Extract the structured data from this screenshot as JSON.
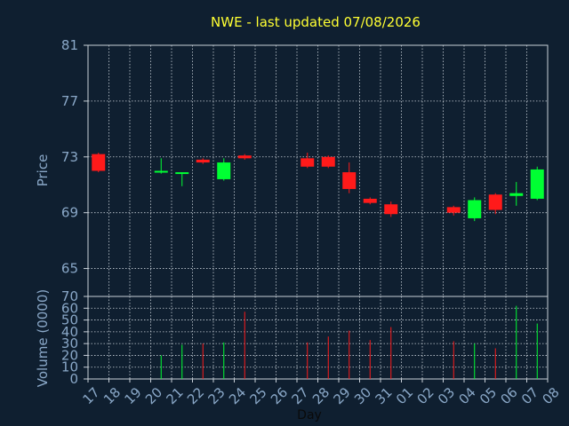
{
  "chart_data": [
    {
      "type": "candlestick",
      "title": "NWE - last updated 07/08/2026",
      "ylabel": "Price",
      "ylim": [
        63,
        81
      ],
      "yticks": [
        65,
        69,
        73,
        77,
        81
      ],
      "grid": true,
      "colors": {
        "up": "#00ff33",
        "down": "#ff1a1a",
        "grid": "#c8d0d8",
        "tick": "#8aa8c8",
        "title": "#ffff33",
        "background": "#0f1f30"
      },
      "candles": [
        {
          "day": "17",
          "open": 73.2,
          "high": 73.3,
          "low": 71.9,
          "close": 72.0
        },
        {
          "day": "20",
          "open": 71.9,
          "high": 72.9,
          "low": 71.8,
          "close": 72.0
        },
        {
          "day": "21",
          "open": 71.8,
          "high": 71.9,
          "low": 70.9,
          "close": 71.9
        },
        {
          "day": "22",
          "open": 72.8,
          "high": 72.9,
          "low": 72.5,
          "close": 72.6
        },
        {
          "day": "23",
          "open": 71.4,
          "high": 72.9,
          "low": 71.3,
          "close": 72.6
        },
        {
          "day": "24",
          "open": 73.1,
          "high": 73.2,
          "low": 72.8,
          "close": 72.9
        },
        {
          "day": "27",
          "open": 72.9,
          "high": 73.3,
          "low": 72.2,
          "close": 72.3
        },
        {
          "day": "28",
          "open": 73.0,
          "high": 73.1,
          "low": 72.2,
          "close": 72.3
        },
        {
          "day": "29",
          "open": 71.9,
          "high": 72.6,
          "low": 70.4,
          "close": 70.7
        },
        {
          "day": "30",
          "open": 70.0,
          "high": 70.1,
          "low": 69.6,
          "close": 69.7
        },
        {
          "day": "31",
          "open": 69.6,
          "high": 69.8,
          "low": 68.7,
          "close": 68.9
        },
        {
          "day": "03",
          "open": 69.4,
          "high": 69.5,
          "low": 68.8,
          "close": 69.0
        },
        {
          "day": "04",
          "open": 68.6,
          "high": 70.1,
          "low": 68.4,
          "close": 69.9
        },
        {
          "day": "05",
          "open": 70.3,
          "high": 70.4,
          "low": 68.9,
          "close": 69.2
        },
        {
          "day": "06",
          "open": 70.2,
          "high": 71.2,
          "low": 69.5,
          "close": 70.4
        },
        {
          "day": "07",
          "open": 70.0,
          "high": 72.3,
          "low": 69.9,
          "close": 72.1
        }
      ]
    },
    {
      "type": "bar",
      "ylabel": "Volume (0000)",
      "xlabel": "Day",
      "ylim": [
        0,
        70
      ],
      "yticks": [
        0,
        10,
        20,
        30,
        40,
        50,
        60,
        70
      ],
      "categories": [
        "17",
        "18",
        "19",
        "20",
        "21",
        "22",
        "23",
        "24",
        "25",
        "26",
        "27",
        "28",
        "29",
        "30",
        "31",
        "01",
        "02",
        "03",
        "04",
        "05",
        "06",
        "07",
        "08"
      ],
      "values": [
        null,
        null,
        null,
        20,
        29,
        30,
        31,
        57,
        null,
        null,
        31,
        36,
        41,
        33,
        44,
        null,
        null,
        32,
        30,
        26,
        62,
        47,
        null
      ],
      "directions": [
        null,
        null,
        null,
        "up",
        "up",
        "down",
        "up",
        "down",
        null,
        null,
        "down",
        "down",
        "down",
        "down",
        "down",
        null,
        null,
        "down",
        "up",
        "down",
        "up",
        "up",
        null
      ],
      "grid": true
    }
  ]
}
